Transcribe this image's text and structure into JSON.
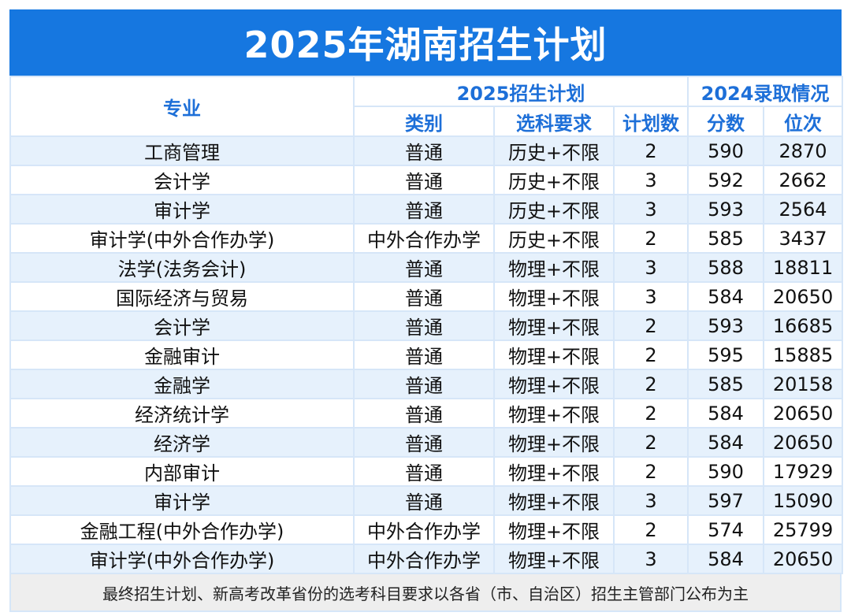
{
  "title": "2025年湖南招生计划",
  "header": {
    "major": "专业",
    "plan_group": "2025招生计划",
    "admit_group": "2024录取情况",
    "category": "类别",
    "subjects": "选科要求",
    "plan_count": "计划数",
    "score": "分数",
    "rank": "位次"
  },
  "rows": [
    {
      "major": "工商管理",
      "category": "普通",
      "subjects": "历史+不限",
      "plan": "2",
      "score": "590",
      "rank": "2870"
    },
    {
      "major": "会计学",
      "category": "普通",
      "subjects": "历史+不限",
      "plan": "3",
      "score": "592",
      "rank": "2662"
    },
    {
      "major": "审计学",
      "category": "普通",
      "subjects": "历史+不限",
      "plan": "3",
      "score": "593",
      "rank": "2564"
    },
    {
      "major": "审计学(中外合作办学)",
      "category": "中外合作办学",
      "subjects": "历史+不限",
      "plan": "2",
      "score": "585",
      "rank": "3437"
    },
    {
      "major": "法学(法务会计)",
      "category": "普通",
      "subjects": "物理+不限",
      "plan": "3",
      "score": "588",
      "rank": "18811"
    },
    {
      "major": "国际经济与贸易",
      "category": "普通",
      "subjects": "物理+不限",
      "plan": "3",
      "score": "584",
      "rank": "20650"
    },
    {
      "major": "会计学",
      "category": "普通",
      "subjects": "物理+不限",
      "plan": "2",
      "score": "593",
      "rank": "16685"
    },
    {
      "major": "金融审计",
      "category": "普通",
      "subjects": "物理+不限",
      "plan": "2",
      "score": "595",
      "rank": "15885"
    },
    {
      "major": "金融学",
      "category": "普通",
      "subjects": "物理+不限",
      "plan": "2",
      "score": "585",
      "rank": "20158"
    },
    {
      "major": "经济统计学",
      "category": "普通",
      "subjects": "物理+不限",
      "plan": "2",
      "score": "584",
      "rank": "20650"
    },
    {
      "major": "经济学",
      "category": "普通",
      "subjects": "物理+不限",
      "plan": "2",
      "score": "584",
      "rank": "20650"
    },
    {
      "major": "内部审计",
      "category": "普通",
      "subjects": "物理+不限",
      "plan": "2",
      "score": "590",
      "rank": "17929"
    },
    {
      "major": "审计学",
      "category": "普通",
      "subjects": "物理+不限",
      "plan": "3",
      "score": "597",
      "rank": "15090"
    },
    {
      "major": "金融工程(中外合作办学)",
      "category": "中外合作办学",
      "subjects": "物理+不限",
      "plan": "2",
      "score": "574",
      "rank": "25799"
    },
    {
      "major": "审计学(中外合作办学)",
      "category": "中外合作办学",
      "subjects": "物理+不限",
      "plan": "3",
      "score": "584",
      "rank": "20650"
    }
  ],
  "footer": "最终招生计划、新高考改革省份的选考科目要求以各省（市、自治区）招生主管部门公布为主",
  "colors": {
    "title_bg": "#1677e0",
    "header_text": "#1d6fd8",
    "stripe": "#e6f1fc",
    "grid": "#d6e6f8",
    "footer_bg": "#eeeeee"
  }
}
